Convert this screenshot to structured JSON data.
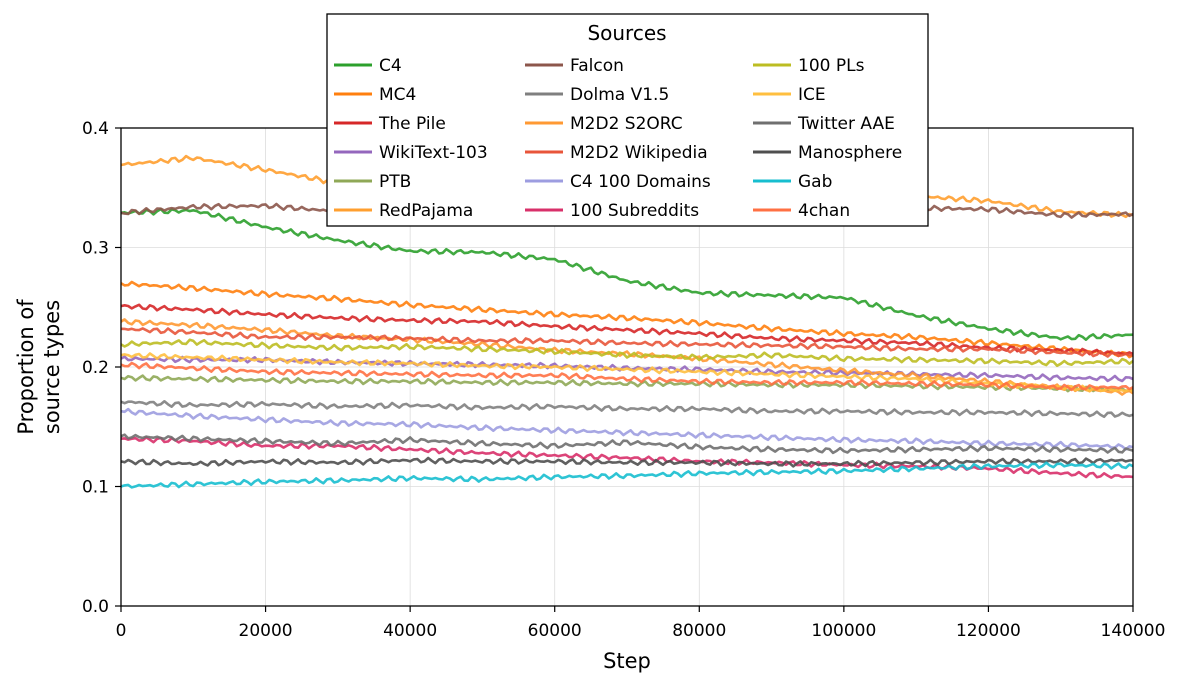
{
  "chart_data": {
    "type": "line",
    "xlabel": "Step",
    "ylabel": [
      "Proportion of",
      "source types"
    ],
    "xlim": [
      0,
      140000
    ],
    "ylim": [
      0,
      0.4
    ],
    "xticks": [
      0,
      20000,
      40000,
      60000,
      80000,
      100000,
      120000,
      140000
    ],
    "yticks": [
      0.0,
      0.1,
      0.2,
      0.3,
      0.4
    ],
    "xtick_labels": [
      "0",
      "20000",
      "40000",
      "60000",
      "80000",
      "100000",
      "120000",
      "140000"
    ],
    "ytick_labels": [
      "0.0",
      "0.1",
      "0.2",
      "0.3",
      "0.4"
    ],
    "grid": true,
    "legend": {
      "title": "Sources",
      "placement": "top-center",
      "columns": 3
    },
    "x": [
      0,
      10000,
      20000,
      30000,
      40000,
      50000,
      60000,
      70000,
      80000,
      90000,
      100000,
      110000,
      120000,
      130000,
      140000
    ],
    "series": [
      {
        "name": "C4",
        "color": "#2ca02c",
        "values": [
          0.329,
          0.331,
          0.317,
          0.306,
          0.297,
          0.296,
          0.29,
          0.272,
          0.262,
          0.26,
          0.258,
          0.243,
          0.232,
          0.224,
          0.227
        ]
      },
      {
        "name": "MC4",
        "color": "#ff7f0e",
        "values": [
          0.27,
          0.266,
          0.261,
          0.257,
          0.252,
          0.248,
          0.244,
          0.241,
          0.237,
          0.232,
          0.228,
          0.225,
          0.22,
          0.215,
          0.21
        ]
      },
      {
        "name": "The Pile",
        "color": "#d62728",
        "values": [
          0.251,
          0.248,
          0.244,
          0.241,
          0.239,
          0.238,
          0.234,
          0.231,
          0.228,
          0.224,
          0.222,
          0.22,
          0.216,
          0.214,
          0.211
        ]
      },
      {
        "name": "WikiText-103",
        "color": "#9467bd",
        "values": [
          0.207,
          0.206,
          0.206,
          0.204,
          0.203,
          0.202,
          0.201,
          0.199,
          0.198,
          0.196,
          0.195,
          0.194,
          0.193,
          0.191,
          0.19
        ]
      },
      {
        "name": "PTB",
        "color": "#8fa857",
        "values": [
          0.191,
          0.19,
          0.189,
          0.188,
          0.188,
          0.187,
          0.187,
          0.186,
          0.186,
          0.185,
          0.185,
          0.184,
          0.183,
          0.182,
          0.181
        ]
      },
      {
        "name": "RedPajama",
        "color": "#ff9f2f",
        "values": [
          0.369,
          0.375,
          0.365,
          0.354,
          0.34,
          0.338,
          0.34,
          0.343,
          0.34,
          0.339,
          0.34,
          0.343,
          0.339,
          0.33,
          0.327
        ]
      },
      {
        "name": "Falcon",
        "color": "#8c564b",
        "values": [
          0.329,
          0.334,
          0.335,
          0.33,
          0.328,
          0.33,
          0.332,
          0.331,
          0.33,
          0.331,
          0.332,
          0.333,
          0.332,
          0.327,
          0.328
        ]
      },
      {
        "name": "Dolma V1.5",
        "color": "#7f7f7f",
        "values": [
          0.171,
          0.168,
          0.169,
          0.167,
          0.168,
          0.166,
          0.167,
          0.165,
          0.165,
          0.163,
          0.163,
          0.162,
          0.162,
          0.161,
          0.16
        ]
      },
      {
        "name": "M2D2 S2ORC",
        "color": "#ff9933",
        "values": [
          0.238,
          0.235,
          0.231,
          0.226,
          0.223,
          0.219,
          0.214,
          0.211,
          0.207,
          0.202,
          0.197,
          0.193,
          0.188,
          0.183,
          0.178
        ]
      },
      {
        "name": "M2D2 Wikipedia",
        "color": "#e8553a",
        "values": [
          0.232,
          0.229,
          0.225,
          0.225,
          0.224,
          0.222,
          0.222,
          0.22,
          0.219,
          0.218,
          0.217,
          0.215,
          0.215,
          0.212,
          0.21
        ]
      },
      {
        "name": "C4 100 Domains",
        "color": "#9d9de0",
        "values": [
          0.163,
          0.159,
          0.156,
          0.153,
          0.152,
          0.149,
          0.147,
          0.145,
          0.143,
          0.141,
          0.139,
          0.138,
          0.136,
          0.135,
          0.133
        ]
      },
      {
        "name": "100 Subreddits",
        "color": "#d8306a",
        "values": [
          0.14,
          0.138,
          0.134,
          0.134,
          0.131,
          0.128,
          0.126,
          0.124,
          0.121,
          0.12,
          0.118,
          0.117,
          0.115,
          0.111,
          0.108
        ]
      },
      {
        "name": "100 PLs",
        "color": "#bcbd22",
        "values": [
          0.219,
          0.221,
          0.218,
          0.216,
          0.217,
          0.215,
          0.213,
          0.21,
          0.208,
          0.21,
          0.207,
          0.206,
          0.205,
          0.203,
          0.205
        ]
      },
      {
        "name": "ICE",
        "color": "#ffbf3f",
        "values": [
          0.21,
          0.208,
          0.206,
          0.204,
          0.203,
          0.201,
          0.2,
          0.198,
          0.196,
          0.194,
          0.192,
          0.19,
          0.186,
          0.183,
          0.18
        ]
      },
      {
        "name": "Twitter AAE",
        "color": "#6f6f6f",
        "values": [
          0.142,
          0.14,
          0.138,
          0.136,
          0.139,
          0.136,
          0.134,
          0.137,
          0.133,
          0.131,
          0.13,
          0.131,
          0.132,
          0.131,
          0.13
        ]
      },
      {
        "name": "Manosphere",
        "color": "#4f4f4f",
        "values": [
          0.121,
          0.119,
          0.121,
          0.12,
          0.122,
          0.121,
          0.121,
          0.12,
          0.12,
          0.119,
          0.119,
          0.12,
          0.121,
          0.121,
          0.122
        ]
      },
      {
        "name": "Gab",
        "color": "#17becf",
        "values": [
          0.1,
          0.102,
          0.104,
          0.105,
          0.107,
          0.106,
          0.108,
          0.109,
          0.111,
          0.112,
          0.113,
          0.115,
          0.117,
          0.118,
          0.117
        ]
      },
      {
        "name": "4chan",
        "color": "#ff7043",
        "values": [
          0.202,
          0.199,
          0.196,
          0.195,
          0.194,
          0.193,
          0.193,
          0.19,
          0.188,
          0.187,
          0.187,
          0.186,
          0.185,
          0.183,
          0.183
        ]
      }
    ]
  }
}
